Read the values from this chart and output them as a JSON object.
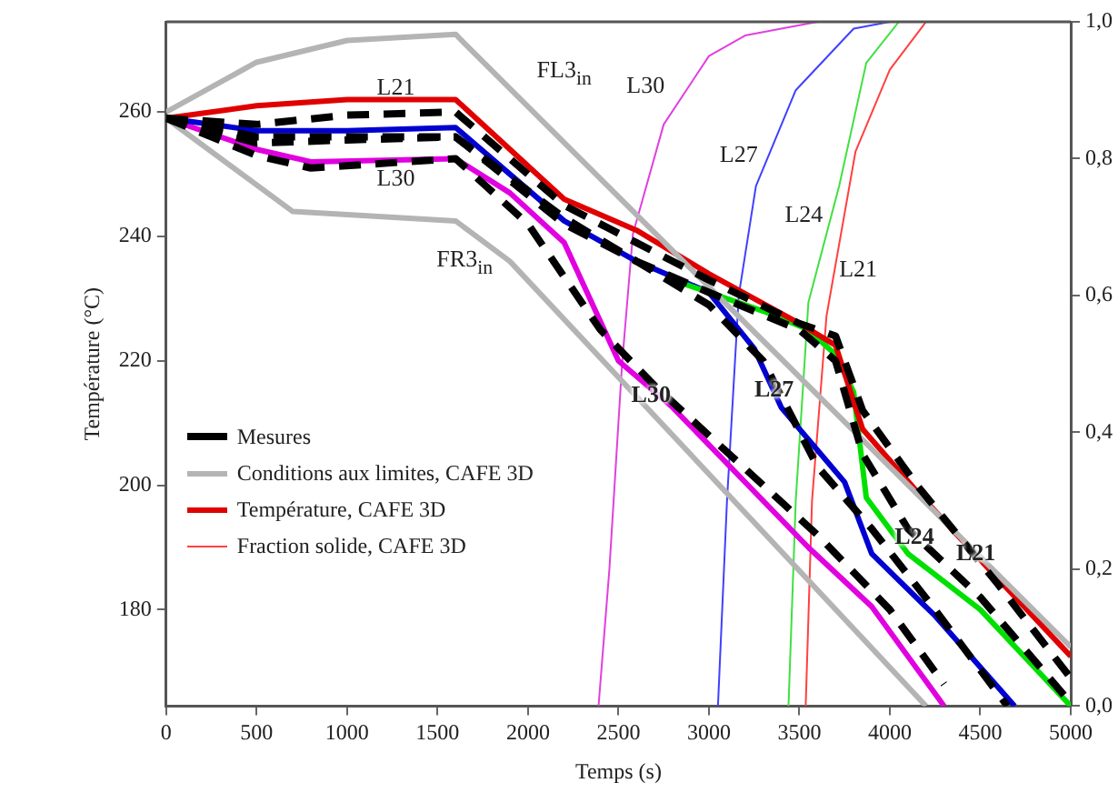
{
  "chart_data": {
    "type": "line",
    "xlabel": "Temps (s)",
    "ylabel": "Température (°C)",
    "xlim": [
      0,
      5000
    ],
    "xticks": [
      0,
      500,
      1000,
      1500,
      2000,
      2500,
      3000,
      3500,
      4000,
      4500,
      5000
    ],
    "ylim": [
      164.5,
      274.5
    ],
    "yticks": [
      180,
      200,
      220,
      240,
      260
    ],
    "y2lim": [
      0,
      1
    ],
    "y2ticks": [
      {
        "value": 0,
        "label": "0,0"
      },
      {
        "value": 0.2,
        "label": "0,2"
      },
      {
        "value": 0.4,
        "label": "0,4"
      },
      {
        "value": 0.6,
        "label": "0,6"
      },
      {
        "value": 0.8,
        "label": "0,8"
      },
      {
        "value": 1,
        "label": "1,0"
      }
    ],
    "grid": false,
    "legend": "left",
    "marker": "none",
    "series": [
      {
        "name": "Mesures",
        "color": "#000000",
        "line_style": "dashed",
        "x": [
          0,
          500,
          1000,
          1600,
          2200,
          2600,
          3000,
          3500,
          3700,
          3850,
          4150,
          4600,
          5000
        ],
        "values": [
          259,
          258,
          259.5,
          260,
          245,
          239,
          233,
          226,
          224,
          212,
          200,
          184,
          169
        ]
      },
      {
        "color": "#000000",
        "line_style": "dashed",
        "x": [
          0,
          500,
          1000,
          1600,
          2200,
          2600,
          3000,
          3500,
          3700,
          3850,
          4100,
          4500,
          5000
        ],
        "values": [
          259,
          256,
          256,
          256,
          242,
          236,
          231,
          225,
          220,
          205,
          193,
          182,
          165
        ]
      },
      {
        "color": "#000000",
        "line_style": "dashed",
        "x": [
          0,
          500,
          1000,
          1600,
          2200,
          2600,
          3000,
          3300,
          3600,
          3900,
          4250,
          4650
        ],
        "values": [
          259,
          255,
          255.5,
          256,
          243,
          236,
          229,
          220,
          203,
          193,
          180,
          164.5
        ]
      },
      {
        "color": "#000000",
        "line_style": "dashed",
        "x": [
          0,
          500,
          800,
          1600,
          2000,
          2400,
          2700,
          3000,
          3600,
          4000,
          4300
        ],
        "values": [
          259,
          253,
          251,
          252.5,
          242,
          225,
          216,
          208,
          192,
          180,
          168
        ]
      },
      {
        "name": "Conditions aux limites, CAFE 3D",
        "color": "#b4b4b4",
        "x": [
          0,
          500,
          1000,
          1600,
          1650,
          5000
        ],
        "values": [
          260,
          268,
          271.5,
          272.5,
          271,
          174
        ]
      },
      {
        "color": "#b4b4b4",
        "x": [
          0,
          700,
          1600,
          1900,
          4200
        ],
        "values": [
          259,
          244,
          242.5,
          236,
          164.5
        ]
      },
      {
        "name": "Température, CAFE 3D",
        "color": "#e00000",
        "x": [
          0,
          500,
          1000,
          1600,
          2200,
          2600,
          3000,
          3500,
          3700,
          3850,
          4150,
          4500,
          5000
        ],
        "values": [
          259,
          261,
          262,
          262,
          246,
          241,
          234,
          226,
          222.5,
          209,
          199,
          188,
          172.5
        ]
      },
      {
        "color": "#00e000",
        "x": [
          2800,
          3300,
          3550,
          3700,
          3800,
          3870,
          4100,
          4500,
          5000
        ],
        "values": [
          233,
          228,
          225,
          221,
          215,
          198,
          189,
          180,
          164.5
        ]
      },
      {
        "color": "#0000d0",
        "x": [
          0,
          500,
          1000,
          1600,
          2200,
          2600,
          3000,
          3250,
          3400,
          3750,
          3900,
          4250,
          4690
        ],
        "values": [
          259,
          257,
          257,
          257.5,
          242.5,
          236,
          231,
          222,
          212.5,
          200.5,
          189,
          179,
          164.5
        ]
      },
      {
        "color": "#e000e0",
        "x": [
          0,
          500,
          800,
          1600,
          1900,
          2200,
          2500,
          2800,
          3550,
          3900,
          4300
        ],
        "values": [
          259,
          254,
          252,
          252.5,
          247,
          239,
          220,
          212.5,
          190,
          180.5,
          164.5
        ]
      },
      {
        "name": "Fraction solide, CAFE 3D",
        "color": "#ff4040",
        "axis": "y2",
        "x": [
          3535,
          3570,
          3650,
          3810,
          4000,
          4200
        ],
        "values": [
          0,
          0.3,
          0.57,
          0.81,
          0.93,
          1
        ]
      },
      {
        "color": "#40e040",
        "axis": "y2",
        "x": [
          3440,
          3480,
          3550,
          3720,
          3870,
          4050
        ],
        "values": [
          0,
          0.3,
          0.59,
          0.76,
          0.94,
          1
        ]
      },
      {
        "color": "#4040ff",
        "axis": "y2",
        "x": [
          3050,
          3100,
          3165,
          3260,
          3480,
          3800,
          4000
        ],
        "values": [
          0,
          0.3,
          0.6,
          0.76,
          0.9,
          0.99,
          1
        ]
      },
      {
        "color": "#e040e0",
        "axis": "y2",
        "x": [
          2390,
          2450,
          2520,
          2580,
          2750,
          3000,
          3200,
          3600
        ],
        "values": [
          0,
          0.2,
          0.5,
          0.69,
          0.85,
          0.95,
          0.98,
          1
        ]
      }
    ],
    "annotations": [
      "L21",
      "L30",
      "FL3$_{in}$",
      "FR3$_{in}$",
      "L30",
      "L27",
      "L24",
      "L21",
      {
        "text": "L30",
        "x": 2680,
        "y": 214.7
      },
      {
        "text": "L27",
        "x": 3360,
        "y": 215.3
      },
      {
        "text": "L24",
        "x": 4136,
        "y": 191.8
      },
      {
        "text": "L21",
        "x": 4476,
        "y": 189
      }
    ]
  }
}
